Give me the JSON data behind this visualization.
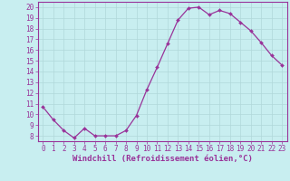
{
  "x": [
    0,
    1,
    2,
    3,
    4,
    5,
    6,
    7,
    8,
    9,
    10,
    11,
    12,
    13,
    14,
    15,
    16,
    17,
    18,
    19,
    20,
    21,
    22,
    23
  ],
  "y": [
    10.7,
    9.5,
    8.5,
    7.8,
    8.7,
    8.0,
    8.0,
    8.0,
    8.5,
    9.9,
    12.3,
    14.4,
    16.6,
    18.8,
    19.9,
    20.0,
    19.3,
    19.7,
    19.4,
    18.6,
    17.8,
    16.7,
    15.5,
    14.6
  ],
  "line_color": "#993399",
  "marker": "D",
  "marker_size": 2.0,
  "bg_color": "#c8eef0",
  "grid_color": "#b0d8da",
  "ylabel_ticks": [
    8,
    9,
    10,
    11,
    12,
    13,
    14,
    15,
    16,
    17,
    18,
    19,
    20
  ],
  "xlabel_ticks": [
    0,
    1,
    2,
    3,
    4,
    5,
    6,
    7,
    8,
    9,
    10,
    11,
    12,
    13,
    14,
    15,
    16,
    17,
    18,
    19,
    20,
    21,
    22,
    23
  ],
  "xlabel_label": "Windchill (Refroidissement éolien,°C)",
  "ylim": [
    7.5,
    20.5
  ],
  "xlim": [
    -0.5,
    23.5
  ],
  "tick_fontsize": 5.5,
  "xlabel_fontsize": 6.5,
  "tick_color": "#993399",
  "label_color": "#993399",
  "axis_color": "#993399",
  "line_width": 0.9
}
